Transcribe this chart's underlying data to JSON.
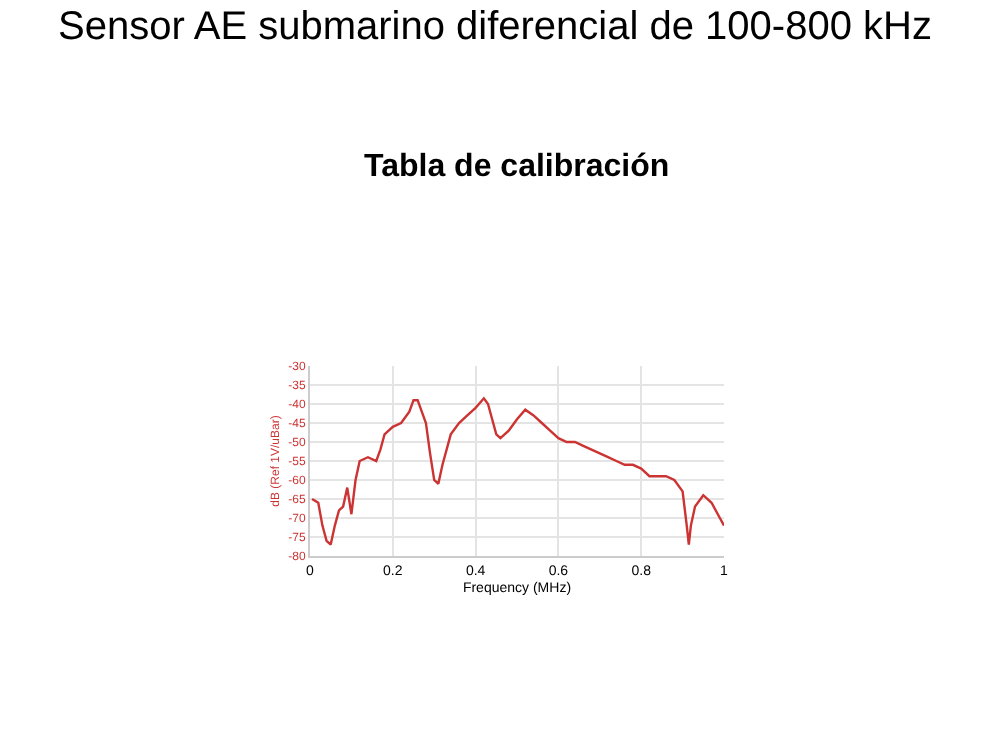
{
  "chart_data": {
    "type": "line",
    "title": "Sensor AE submarino diferencial de 100-800 kHz",
    "subtitle": "Tabla de calibración",
    "xlabel": "Frequency (MHz)",
    "ylabel": "dB (Ref 1V/uBar)",
    "xlim": [
      0,
      1
    ],
    "xticks": [
      0,
      0.2,
      0.4,
      0.6,
      0.8,
      1
    ],
    "ylim": [
      -80,
      -30
    ],
    "yticks": [
      -80,
      -75,
      -70,
      -65,
      -60,
      -55,
      -50,
      -45,
      -40,
      -35,
      -30
    ],
    "grid": true,
    "series": [
      {
        "color": "#cc3333",
        "x": [
          0.005,
          0.02,
          0.03,
          0.04,
          0.05,
          0.06,
          0.07,
          0.08,
          0.09,
          0.1,
          0.11,
          0.12,
          0.14,
          0.16,
          0.17,
          0.18,
          0.2,
          0.22,
          0.24,
          0.25,
          0.26,
          0.27,
          0.28,
          0.29,
          0.3,
          0.31,
          0.32,
          0.34,
          0.36,
          0.38,
          0.4,
          0.42,
          0.43,
          0.44,
          0.45,
          0.46,
          0.48,
          0.5,
          0.52,
          0.54,
          0.56,
          0.58,
          0.6,
          0.62,
          0.64,
          0.66,
          0.68,
          0.7,
          0.72,
          0.74,
          0.76,
          0.78,
          0.8,
          0.82,
          0.84,
          0.86,
          0.88,
          0.9,
          0.91,
          0.915,
          0.92,
          0.93,
          0.95,
          0.97,
          0.99,
          1.0
        ],
        "values": [
          -65,
          -66,
          -72,
          -76,
          -77,
          -72,
          -68,
          -67,
          -62,
          -69,
          -60,
          -55,
          -54,
          -55,
          -52,
          -48,
          -46,
          -45,
          -42,
          -39,
          -39,
          -42,
          -45,
          -53,
          -60,
          -61,
          -56,
          -48,
          -45,
          -43,
          -41,
          -38.5,
          -40,
          -44,
          -48,
          -49,
          -47,
          -44,
          -41.5,
          -43,
          -45,
          -47,
          -49,
          -50,
          -50,
          -51,
          -52,
          -53,
          -54,
          -55,
          -56,
          -56,
          -57,
          -59,
          -59,
          -59,
          -60,
          -63,
          -72,
          -77,
          -72,
          -67,
          -64,
          -66,
          -70,
          -72
        ]
      }
    ]
  }
}
